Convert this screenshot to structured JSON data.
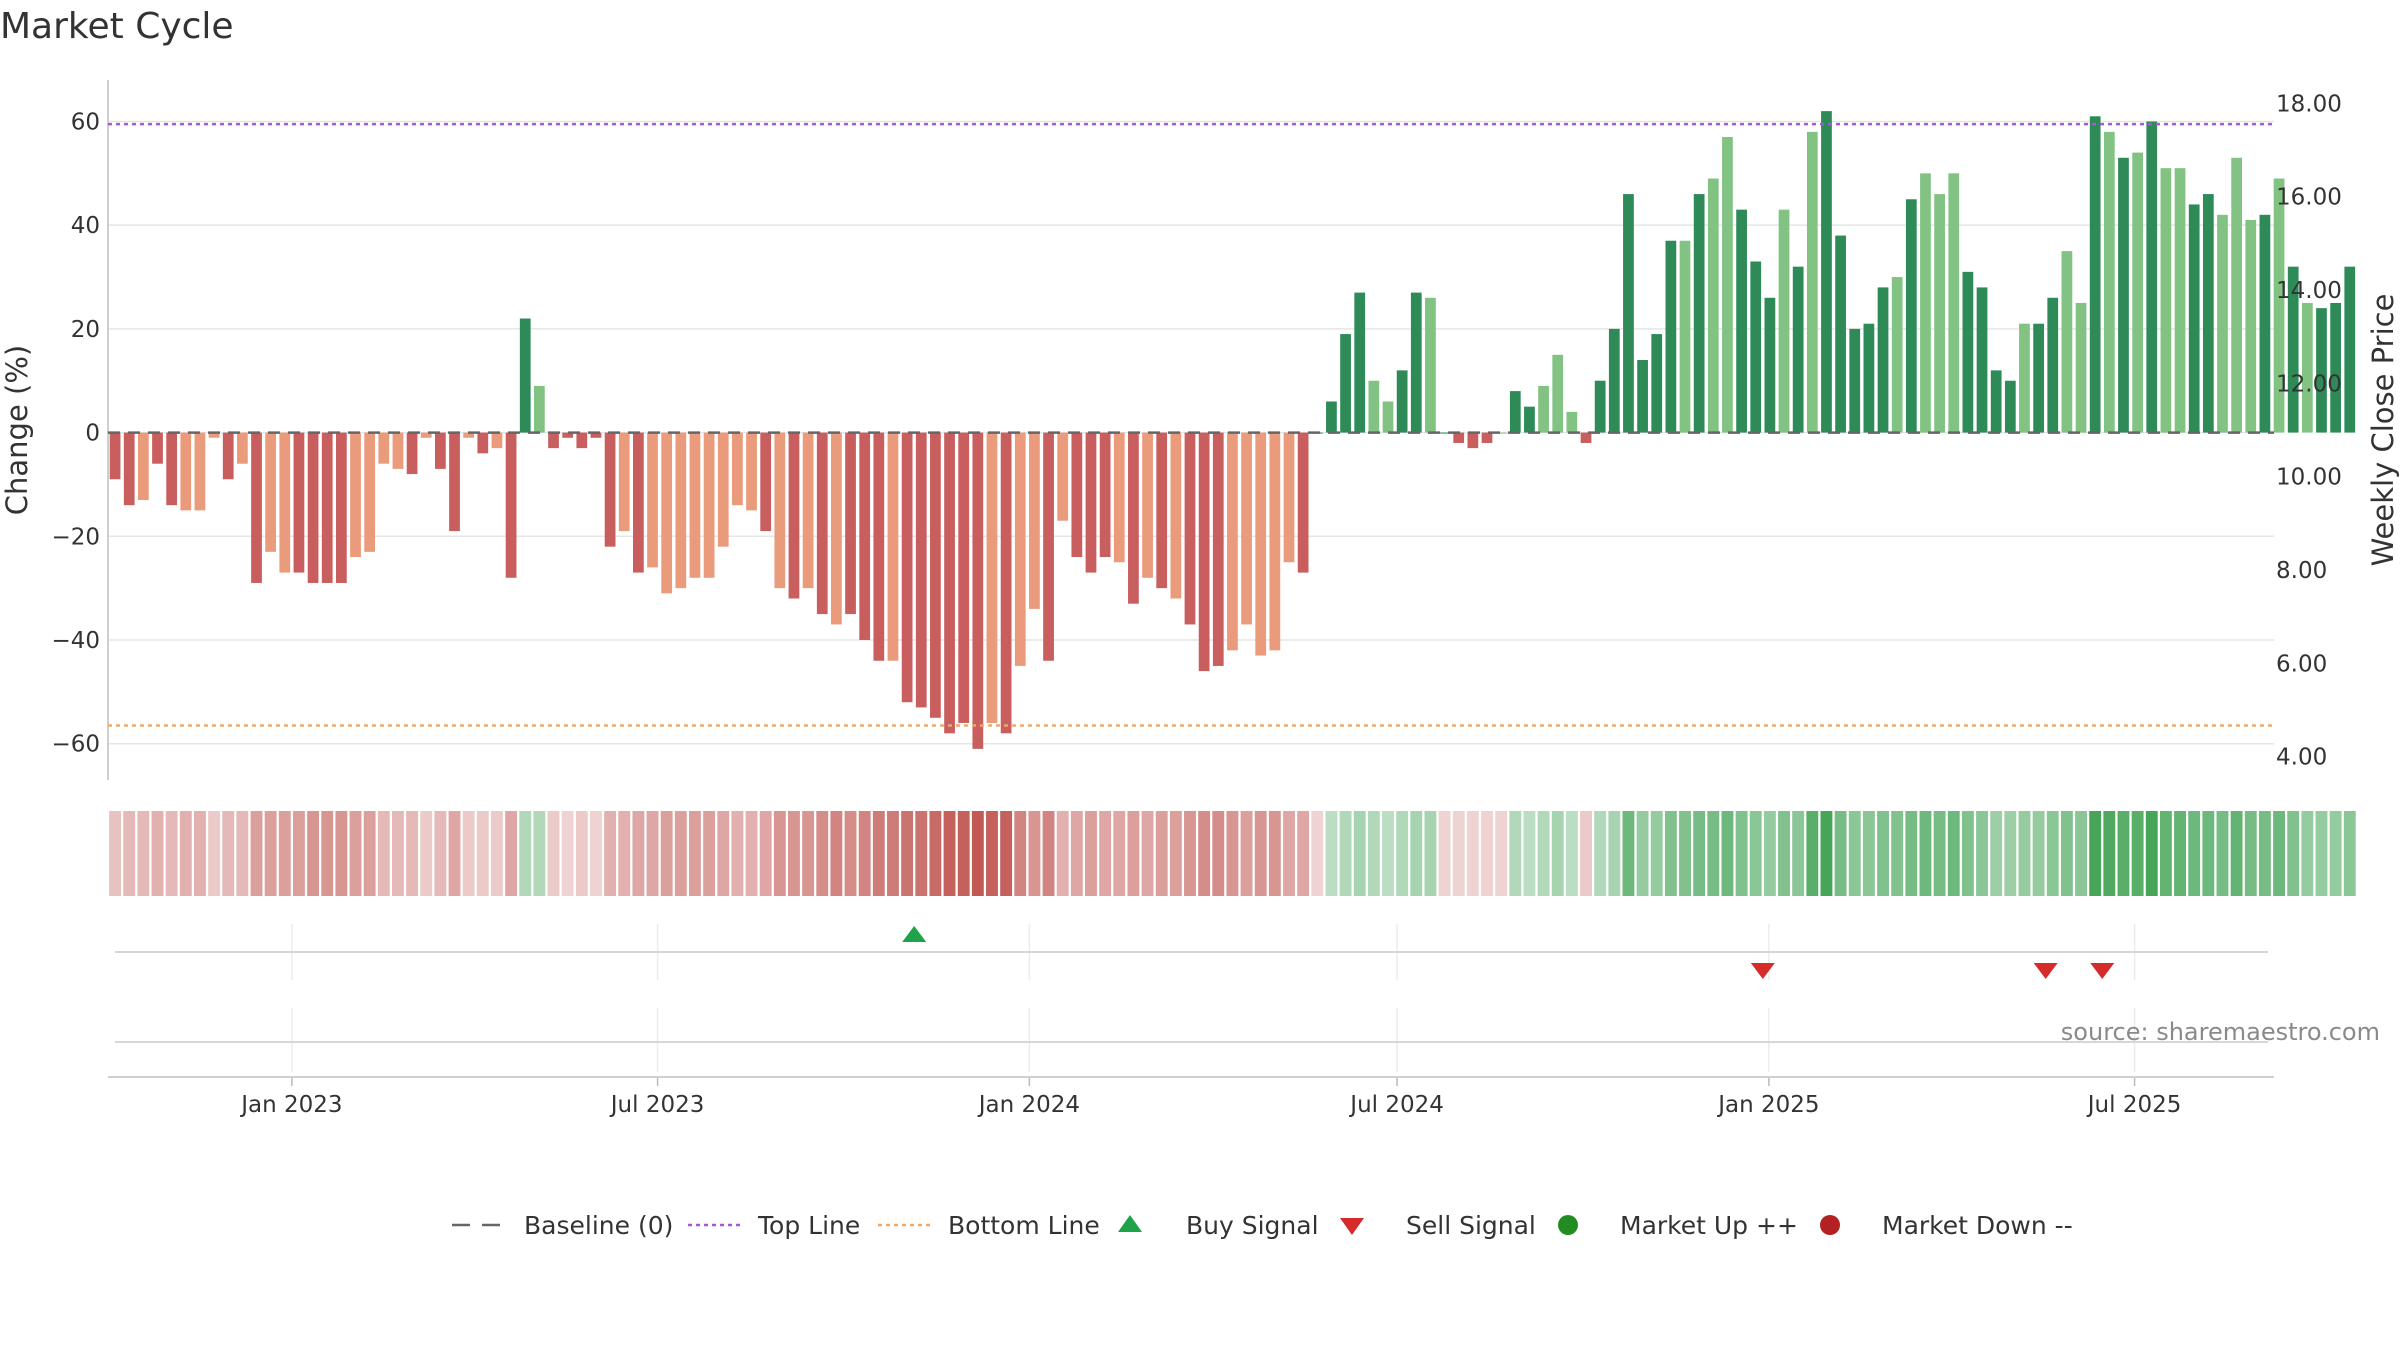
{
  "chart_data": {
    "type": "bar",
    "title": "Market Cycle",
    "ylabel": "Change (%)",
    "y2label": "Weekly Close Price",
    "ylim": [
      -67,
      68
    ],
    "y2lim": [
      3.5,
      18.5
    ],
    "yticks": [
      {
        "v": 60,
        "label": "60"
      },
      {
        "v": 40,
        "label": "40"
      },
      {
        "v": 20,
        "label": "20"
      },
      {
        "v": 0,
        "label": "0"
      },
      {
        "v": -20,
        "label": "−20"
      },
      {
        "v": -40,
        "label": "−40"
      },
      {
        "v": -60,
        "label": "−60"
      }
    ],
    "y2ticks": [
      "4.00",
      "6.00",
      "8.00",
      "10.00",
      "12.00",
      "14.00",
      "16.00",
      "18.00"
    ],
    "xaxis": {
      "start": "2022-10-02",
      "end": "2025-09-08",
      "ticks": [
        {
          "date": "2023-01-01",
          "label": "Jan 2023"
        },
        {
          "date": "2023-07-01",
          "label": "Jul 2023"
        },
        {
          "date": "2024-01-01",
          "label": "Jan 2024"
        },
        {
          "date": "2024-07-01",
          "label": "Jul 2024"
        },
        {
          "date": "2025-01-01",
          "label": "Jan 2025"
        },
        {
          "date": "2025-07-01",
          "label": "Jul 2025"
        }
      ]
    },
    "first_week": "2022-10-02",
    "changes": [
      -9,
      -14,
      -13,
      -6,
      -14,
      -15,
      -15,
      -1,
      -9,
      -6,
      -29,
      -23,
      -27,
      -27,
      -29,
      -29,
      -29,
      -24,
      -23,
      -6,
      -7,
      -8,
      -1,
      -7,
      -19,
      -1,
      -4,
      -3,
      -28,
      22,
      9,
      -3,
      -1,
      -3,
      -1,
      -22,
      -19,
      -27,
      -26,
      -31,
      -30,
      -28,
      -28,
      -22,
      -14,
      -15,
      -19,
      -30,
      -32,
      -30,
      -35,
      -37,
      -35,
      -40,
      -44,
      -44,
      -52,
      -53,
      -55,
      -58,
      -56,
      -61,
      -56,
      -58,
      -45,
      -34,
      -44,
      -17,
      -24,
      -27,
      -24,
      -25,
      -33,
      -28,
      -30,
      -32,
      -37,
      -46,
      -45,
      -42,
      -37,
      -43,
      -42,
      -25,
      -27,
      0,
      6,
      19,
      27,
      10,
      6,
      12,
      27,
      26,
      0,
      -2,
      -3,
      -2,
      0,
      8,
      5,
      9,
      15,
      4,
      -2,
      10,
      20,
      46,
      14,
      19,
      37,
      37,
      46,
      49,
      57,
      43,
      33,
      26,
      43,
      32,
      58,
      62,
      38,
      20,
      21,
      28,
      30,
      45,
      50,
      46,
      50,
      31,
      28,
      12,
      10,
      21,
      21,
      26,
      35,
      25,
      61,
      58,
      53,
      54,
      60,
      51,
      51,
      44,
      46,
      42,
      53,
      41,
      42,
      49,
      32,
      25,
      24,
      25,
      32
    ],
    "light_weeks": [
      2,
      5,
      6,
      7,
      9,
      11,
      12,
      17,
      18,
      19,
      20,
      22,
      25,
      27,
      30,
      36,
      38,
      39,
      40,
      41,
      42,
      43,
      44,
      45,
      47,
      49,
      51,
      55,
      62,
      64,
      65,
      67,
      71,
      73,
      75,
      79,
      80,
      81,
      82,
      83,
      89,
      90,
      93,
      98,
      101,
      102,
      103,
      111,
      113,
      114,
      118,
      120,
      126,
      128,
      129,
      130,
      135,
      138,
      139,
      141,
      143,
      145,
      146,
      149,
      150,
      151,
      153,
      155
    ],
    "shading_levels": [
      0.35,
      0.4,
      0.4,
      0.45,
      0.4,
      0.45,
      0.45,
      0.3,
      0.4,
      0.4,
      0.55,
      0.55,
      0.55,
      0.55,
      0.6,
      0.6,
      0.6,
      0.55,
      0.55,
      0.4,
      0.4,
      0.4,
      0.3,
      0.4,
      0.5,
      0.3,
      0.3,
      0.3,
      0.5,
      0.4,
      0.4,
      0.3,
      0.25,
      0.3,
      0.25,
      0.45,
      0.45,
      0.5,
      0.5,
      0.55,
      0.55,
      0.55,
      0.55,
      0.5,
      0.45,
      0.45,
      0.5,
      0.6,
      0.6,
      0.6,
      0.65,
      0.7,
      0.65,
      0.7,
      0.75,
      0.75,
      0.8,
      0.8,
      0.85,
      0.9,
      0.9,
      0.95,
      0.9,
      0.9,
      0.7,
      0.6,
      0.7,
      0.45,
      0.5,
      0.55,
      0.5,
      0.5,
      0.55,
      0.5,
      0.55,
      0.55,
      0.6,
      0.65,
      0.65,
      0.6,
      0.55,
      0.6,
      0.6,
      0.5,
      0.5,
      0.3,
      0.35,
      0.4,
      0.45,
      0.4,
      0.35,
      0.4,
      0.45,
      0.45,
      0.3,
      0.25,
      0.25,
      0.25,
      0.3,
      0.4,
      0.35,
      0.4,
      0.45,
      0.35,
      0.3,
      0.4,
      0.45,
      0.75,
      0.55,
      0.55,
      0.65,
      0.65,
      0.7,
      0.7,
      0.75,
      0.65,
      0.6,
      0.55,
      0.65,
      0.6,
      0.85,
      0.95,
      0.7,
      0.6,
      0.6,
      0.65,
      0.65,
      0.7,
      0.75,
      0.7,
      0.75,
      0.65,
      0.6,
      0.5,
      0.5,
      0.55,
      0.55,
      0.6,
      0.65,
      0.6,
      0.95,
      0.9,
      0.85,
      0.85,
      0.95,
      0.8,
      0.8,
      0.75,
      0.75,
      0.7,
      0.8,
      0.7,
      0.7,
      0.75,
      0.65,
      0.55,
      0.55,
      0.55,
      0.6
    ],
    "top_line": 59.5,
    "bottom_line": -56.5,
    "buy_signals": [
      "2023-11-05"
    ],
    "sell_signals": [
      "2024-12-29",
      "2025-05-18",
      "2025-06-15"
    ],
    "source": "source: sharemaestro.com",
    "legend_placement": "bottom-center",
    "grid": true
  },
  "legend": [
    {
      "key": "baseline",
      "label": "Baseline (0)"
    },
    {
      "key": "top",
      "label": "Top Line"
    },
    {
      "key": "bottom",
      "label": "Bottom Line"
    },
    {
      "key": "buy",
      "label": "Buy Signal"
    },
    {
      "key": "sell",
      "label": "Sell Signal"
    },
    {
      "key": "up",
      "label": "Market Up ++"
    },
    {
      "key": "down",
      "label": "Market Down --"
    }
  ],
  "colors": {
    "up_strong": "#2e8b57",
    "up_light": "#82c384",
    "down_strong": "#c95e5e",
    "down_light": "#e99b7c",
    "top_line": "#a259d9",
    "bottom_line": "#f0a868",
    "buy": "#1fa34a",
    "sell": "#d62b2b",
    "market_up": "#228b22",
    "market_down": "#b22222",
    "baseline": "#666666"
  }
}
